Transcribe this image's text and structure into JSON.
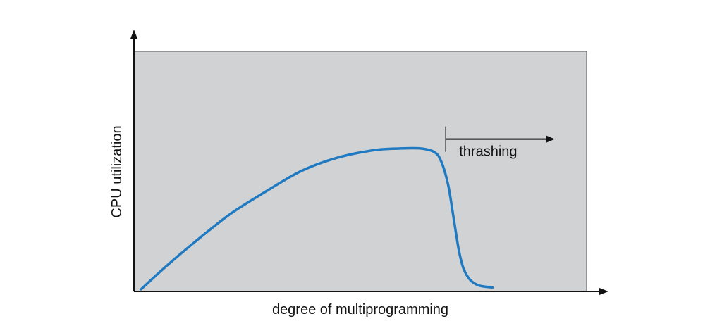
{
  "colors": {
    "background": "#ffffff",
    "plot_fill": "#d1d2d4",
    "plot_border": "#555555",
    "axis": "#111111",
    "curve": "#1f7ac2",
    "annotation": "#111111"
  },
  "chart_data": {
    "type": "line",
    "xlabel": "degree of multiprogramming",
    "ylabel": "CPU utilization",
    "xlim": [
      0,
      100
    ],
    "ylim": [
      0,
      100
    ],
    "tick_labels": false,
    "grid": false,
    "legend": "none",
    "series": [
      {
        "x": [
          0,
          6,
          12,
          20,
          28,
          36,
          44,
          52,
          58,
          63,
          66,
          67.5,
          69,
          70,
          70.8,
          71.5,
          72.5,
          74,
          76,
          79
        ],
        "y": [
          0,
          13,
          25,
          40,
          52,
          63,
          70,
          74,
          75,
          75,
          73,
          68,
          56,
          42,
          30,
          20,
          11,
          5,
          2,
          1
        ]
      }
    ],
    "annotations": [
      {
        "text": "thrashing",
        "type": "range-arrow",
        "x_start": 68.5,
        "x_end": 93,
        "y": 80
      }
    ]
  }
}
